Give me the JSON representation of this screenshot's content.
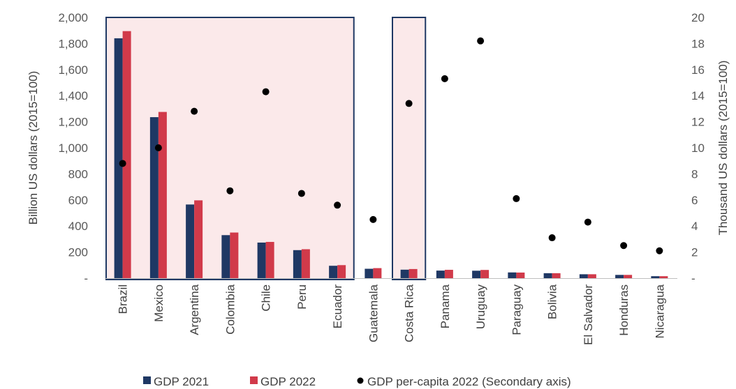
{
  "chart_data": {
    "type": "bar",
    "categories": [
      "Brazil",
      "Mexico",
      "Argentina",
      "Colombia",
      "Chile",
      "Peru",
      "Ecuador",
      "Guatemala",
      "Costa Rica",
      "Panama",
      "Uruguay",
      "Paraguay",
      "Bolivia",
      "El Salvador",
      "Honduras",
      "Nicaragua"
    ],
    "series": [
      {
        "name": "GDP 2021",
        "kind": "bar",
        "axis": "primary",
        "color": "#1f3864",
        "values": [
          1840,
          1235,
          565,
          330,
          273,
          215,
          95,
          72,
          65,
          58,
          57,
          44,
          38,
          30,
          25,
          15
        ]
      },
      {
        "name": "GDP 2022",
        "kind": "bar",
        "axis": "primary",
        "color": "#d13a4a",
        "values": [
          1895,
          1275,
          597,
          350,
          278,
          222,
          100,
          77,
          70,
          64,
          63,
          43,
          38,
          30,
          25,
          15
        ]
      },
      {
        "name": "GDP per-capita 2022 (Secondary axis)",
        "kind": "scatter",
        "axis": "secondary",
        "color": "#000000",
        "values": [
          8.8,
          10.0,
          12.8,
          6.7,
          14.3,
          6.5,
          5.6,
          4.5,
          13.4,
          15.3,
          18.2,
          6.1,
          3.1,
          4.3,
          2.5,
          2.1
        ]
      }
    ],
    "ylabel": "Billion US dollars (2015=100)",
    "y2label": "Thousand US dollars (2015=100)",
    "ylim": [
      0,
      2000
    ],
    "y2lim": [
      0,
      20
    ],
    "yticks": [
      "-",
      "200",
      "400",
      "600",
      "800",
      "1,000",
      "1,200",
      "1,400",
      "1,600",
      "1,800",
      "2,000"
    ],
    "y2ticks": [
      "-",
      "2",
      "4",
      "6",
      "8",
      "10",
      "12",
      "14",
      "16",
      "18",
      "20"
    ],
    "highlight_groups": [
      {
        "from": "Brazil",
        "to": "Ecuador"
      },
      {
        "from": "Costa Rica",
        "to": "Costa Rica"
      }
    ],
    "highlight_fill": "#fbe9ea",
    "highlight_border": "#1f3864",
    "grid": false,
    "legend_position": "bottom"
  }
}
